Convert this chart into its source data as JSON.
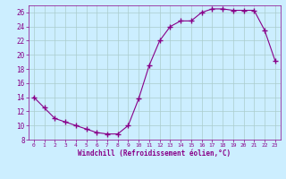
{
  "x": [
    0,
    1,
    2,
    3,
    4,
    5,
    6,
    7,
    8,
    9,
    10,
    11,
    12,
    13,
    14,
    15,
    16,
    17,
    18,
    19,
    20,
    21,
    22,
    23
  ],
  "y": [
    14,
    12.5,
    11,
    10.5,
    10,
    9.5,
    9,
    8.8,
    8.8,
    10,
    13.8,
    18.5,
    22,
    24,
    24.8,
    24.8,
    26,
    26.5,
    26.5,
    26.3,
    26.3,
    26.3,
    23.5,
    19.2
  ],
  "line_color": "#880088",
  "marker": "+",
  "marker_size": 4,
  "marker_lw": 1.0,
  "bg_color": "#cceeff",
  "grid_color": "#aacccc",
  "xlabel": "Windchill (Refroidissement éolien,°C)",
  "xlabel_color": "#880088",
  "tick_color": "#880088",
  "spine_color": "#880088",
  "xlim": [
    -0.5,
    23.5
  ],
  "ylim": [
    8,
    27
  ],
  "yticks": [
    8,
    10,
    12,
    14,
    16,
    18,
    20,
    22,
    24,
    26
  ],
  "xticks": [
    0,
    1,
    2,
    3,
    4,
    5,
    6,
    7,
    8,
    9,
    10,
    11,
    12,
    13,
    14,
    15,
    16,
    17,
    18,
    19,
    20,
    21,
    22,
    23
  ]
}
